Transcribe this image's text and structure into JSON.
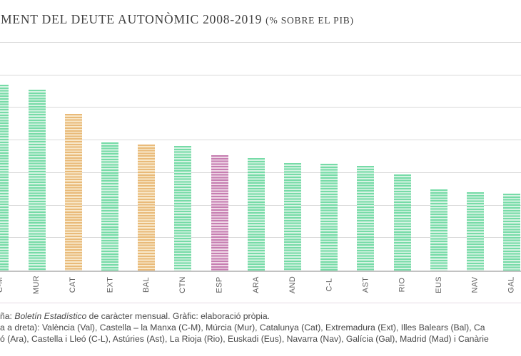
{
  "title": {
    "main": "MENT DEL DEUTE AUTONÒMIC 2008-2019",
    "unit": "(% SOBRE EL PIB)"
  },
  "colors": {
    "green_dark": "#76dba7",
    "green_light": "#d6f3e3",
    "orange_dark": "#e9ba79",
    "orange_light": "#f8e8ca",
    "pink_dark": "#c67eb1",
    "pink_light": "#efd7e6",
    "grid": "#d9d9d9",
    "axis": "#c2c2c2",
    "separator": "#e7dae4",
    "title_text": "#3e3e3e",
    "label_text": "#606060",
    "footer_text": "#474747"
  },
  "chart_data": {
    "type": "bar",
    "title": "MENT DEL DEUTE AUTONÒMIC 2008-2019 (% SOBRE EL PIB)",
    "categories": [
      "C-M",
      "MUR",
      "CAT",
      "EXT",
      "BAL",
      "CTN",
      "ESP",
      "ARA",
      "AND",
      "C-L",
      "AST",
      "RIO",
      "EUS",
      "NAV",
      "GAL"
    ],
    "values": [
      28.6,
      27.8,
      24.1,
      19.7,
      19.4,
      19.1,
      17.7,
      17.3,
      16.5,
      16.4,
      16.1,
      14.8,
      12.5,
      12.0,
      11.8
    ],
    "bar_colors": [
      "green",
      "green",
      "orange",
      "green",
      "orange",
      "green",
      "pink",
      "green",
      "green",
      "green",
      "green",
      "green",
      "green",
      "green",
      "green"
    ],
    "xlabel": "",
    "ylabel": "",
    "ylim": [
      0,
      35
    ],
    "grid_step": 5,
    "grid": true,
    "legend_position": "none"
  },
  "footer": {
    "line1_prefix": "ña: ",
    "line1_italic": "Boletín Estadístico",
    "line1_suffix": " de caràcter mensual. Gràfic: elaboració pròpia.",
    "line2": "a a dreta): València (Val), Castella – la Manxa (C-M), Múrcia (Mur), Catalunya (Cat), Extremadura (Ext), Illes Balears (Bal), Ca",
    "line3": "ó (Ara), Castella i Lleó (C-L), Astúries (Ast), La Rioja (Rio), Euskadi (Eus), Navarra (Nav), Galícia (Gal), Madrid (Mad) i Canàrie"
  }
}
